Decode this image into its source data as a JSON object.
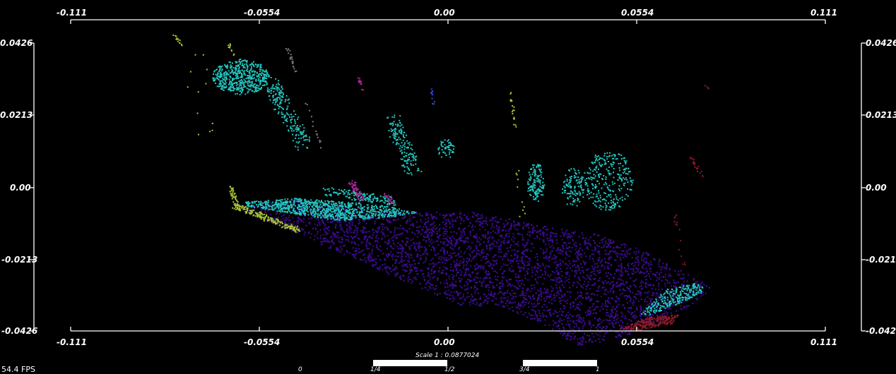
{
  "viewer": {
    "fps_text": "54.4 FPS",
    "scale_text": "Scale 1 : 0.0877024",
    "scale_ticks": [
      "0",
      "1/4",
      "1/2",
      "3/4",
      "1"
    ]
  },
  "axes": {
    "x_ticks": [
      "-0.111",
      "-0.0554",
      "0.00",
      "0.0554",
      "0.111"
    ],
    "y_ticks": [
      "0.0426",
      "0.0213",
      "0.00",
      "-0.0213",
      "-0.0426"
    ],
    "x_range": [
      -0.111,
      0.111
    ],
    "y_range": [
      -0.0426,
      0.0426
    ]
  },
  "colors": {
    "background": "#000000",
    "axis": "#ffffff",
    "ground_purple": "#3a0c8a",
    "cyan": "#22c6c0",
    "yellow_green": "#a8c436",
    "dark_red": "#8a1a28",
    "magenta": "#a02890",
    "blue": "#2a4ad0",
    "gray": "#7a7a7a"
  }
}
